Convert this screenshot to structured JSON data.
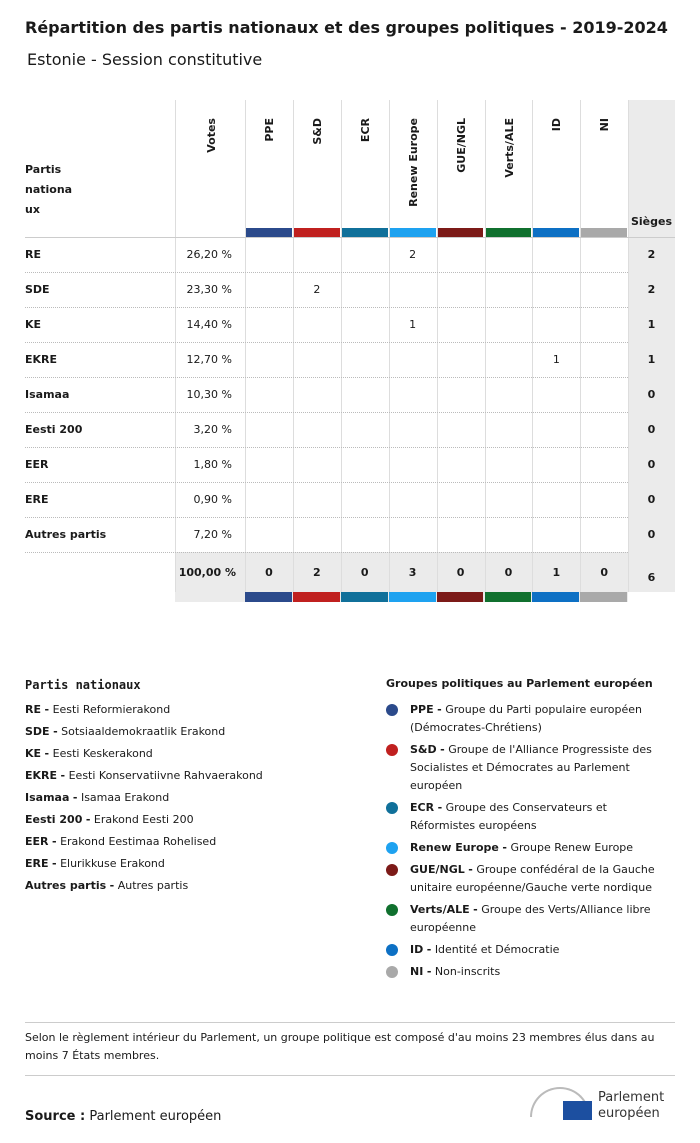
{
  "header": {
    "title": "Répartition des partis nationaux et des groupes politiques - 2019-2024",
    "subtitle": "Estonie - Session constitutive"
  },
  "table": {
    "party_header": "Partis nationaux",
    "votes_header": "Votes",
    "seats_header": "Sièges",
    "groups": [
      {
        "code": "PPE",
        "color": "#2b4a8b"
      },
      {
        "code": "S&D",
        "color": "#c0201f"
      },
      {
        "code": "ECR",
        "color": "#10709a"
      },
      {
        "code": "Renew Europe",
        "color": "#1ea2f0"
      },
      {
        "code": "GUE/NGL",
        "color": "#7c1a18"
      },
      {
        "code": "Verts/ALE",
        "color": "#10702e"
      },
      {
        "code": "ID",
        "color": "#0d70c4"
      },
      {
        "code": "NI",
        "color": "#a9a9a9"
      }
    ],
    "rows": [
      {
        "party": "RE",
        "votes": "26,20 %",
        "seats": [
          null,
          null,
          null,
          2,
          null,
          null,
          null,
          null
        ],
        "total": 2
      },
      {
        "party": "SDE",
        "votes": "23,30 %",
        "seats": [
          null,
          2,
          null,
          null,
          null,
          null,
          null,
          null
        ],
        "total": 2
      },
      {
        "party": "KE",
        "votes": "14,40 %",
        "seats": [
          null,
          null,
          null,
          1,
          null,
          null,
          null,
          null
        ],
        "total": 1
      },
      {
        "party": "EKRE",
        "votes": "12,70 %",
        "seats": [
          null,
          null,
          null,
          null,
          null,
          null,
          1,
          null
        ],
        "total": 1
      },
      {
        "party": "Isamaa",
        "votes": "10,30 %",
        "seats": [
          null,
          null,
          null,
          null,
          null,
          null,
          null,
          null
        ],
        "total": 0
      },
      {
        "party": "Eesti 200",
        "votes": "3,20 %",
        "seats": [
          null,
          null,
          null,
          null,
          null,
          null,
          null,
          null
        ],
        "total": 0
      },
      {
        "party": "EER",
        "votes": "1,80 %",
        "seats": [
          null,
          null,
          null,
          null,
          null,
          null,
          null,
          null
        ],
        "total": 0
      },
      {
        "party": "ERE",
        "votes": "0,90 %",
        "seats": [
          null,
          null,
          null,
          null,
          null,
          null,
          null,
          null
        ],
        "total": 0
      },
      {
        "party": "Autres partis",
        "votes": "7,20 %",
        "seats": [
          null,
          null,
          null,
          null,
          null,
          null,
          null,
          null
        ],
        "total": 0
      }
    ],
    "totals": {
      "votes": "100,00 %",
      "seats": [
        0,
        2,
        0,
        3,
        0,
        0,
        1,
        0
      ],
      "total": 6
    }
  },
  "legend": {
    "separator": "-",
    "parties_title": "Partis nationaux",
    "parties": [
      {
        "code": "RE",
        "name": "Eesti Reformierakond"
      },
      {
        "code": "SDE",
        "name": "Sotsiaaldemokraatlik Erakond"
      },
      {
        "code": "KE",
        "name": "Eesti Keskerakond"
      },
      {
        "code": "EKRE",
        "name": "Eesti Konservatiivne Rahvaerakond"
      },
      {
        "code": "Isamaa",
        "name": "Isamaa Erakond"
      },
      {
        "code": "Eesti 200",
        "name": "Erakond Eesti 200"
      },
      {
        "code": "EER",
        "name": "Erakond Eestimaa Rohelised"
      },
      {
        "code": "ERE",
        "name": "Elurikkuse Erakond"
      },
      {
        "code": "Autres partis",
        "name": "Autres partis"
      }
    ],
    "groups_title": "Groupes politiques au Parlement européen",
    "groups": [
      {
        "code": "PPE",
        "description": "Groupe du Parti populaire européen (Démocrates-Chrétiens)"
      },
      {
        "code": "S&D",
        "description": "Groupe de l'Alliance Progressiste des Socialistes et Démocrates au Parlement européen"
      },
      {
        "code": "ECR",
        "description": "Groupe des Conservateurs et Réformistes européens"
      },
      {
        "code": "Renew Europe",
        "description": "Groupe Renew Europe"
      },
      {
        "code": "GUE/NGL",
        "description": "Groupe confédéral de la Gauche unitaire européenne/Gauche verte nordique"
      },
      {
        "code": "Verts/ALE",
        "description": "Groupe des Verts/Alliance libre européenne"
      },
      {
        "code": "ID",
        "description": "Identité et Démocratie"
      },
      {
        "code": "NI",
        "description": "Non-inscrits"
      }
    ]
  },
  "footnote": "Selon le règlement intérieur du Parlement, un groupe politique est composé d'au moins 23 membres élus dans au moins 7 États membres.",
  "source": {
    "label": "Source :",
    "text": "Parlement européen"
  },
  "logo": {
    "line1": "Parlement",
    "line2": "européen"
  }
}
